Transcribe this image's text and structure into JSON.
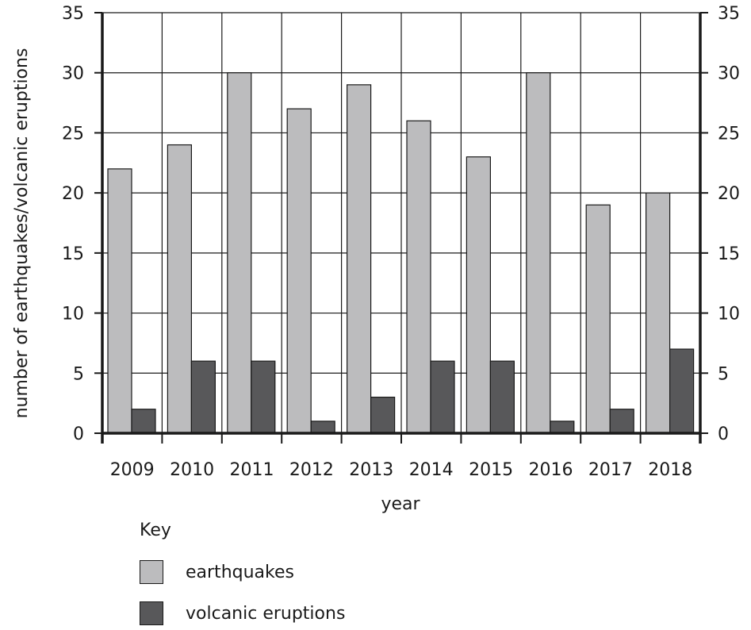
{
  "chart_data": {
    "type": "bar",
    "categories": [
      "2009",
      "2010",
      "2011",
      "2012",
      "2013",
      "2014",
      "2015",
      "2016",
      "2017",
      "2018"
    ],
    "series": [
      {
        "name": "earthquakes",
        "color": "#bcbcbe",
        "values": [
          22,
          24,
          30,
          27,
          29,
          26,
          23,
          30,
          19,
          20
        ]
      },
      {
        "name": "volcanic eruptions",
        "color": "#58585a",
        "values": [
          2,
          6,
          6,
          1,
          3,
          6,
          6,
          1,
          2,
          7
        ]
      }
    ],
    "xlabel": "year",
    "ylabel": "number of earthquakes/volcanic eruptions",
    "ylim": [
      0,
      35
    ],
    "yticks": [
      0,
      5,
      10,
      15,
      20,
      25,
      30,
      35
    ],
    "grid": true,
    "legend": {
      "title": "Key",
      "placement": "bottom-left"
    }
  }
}
